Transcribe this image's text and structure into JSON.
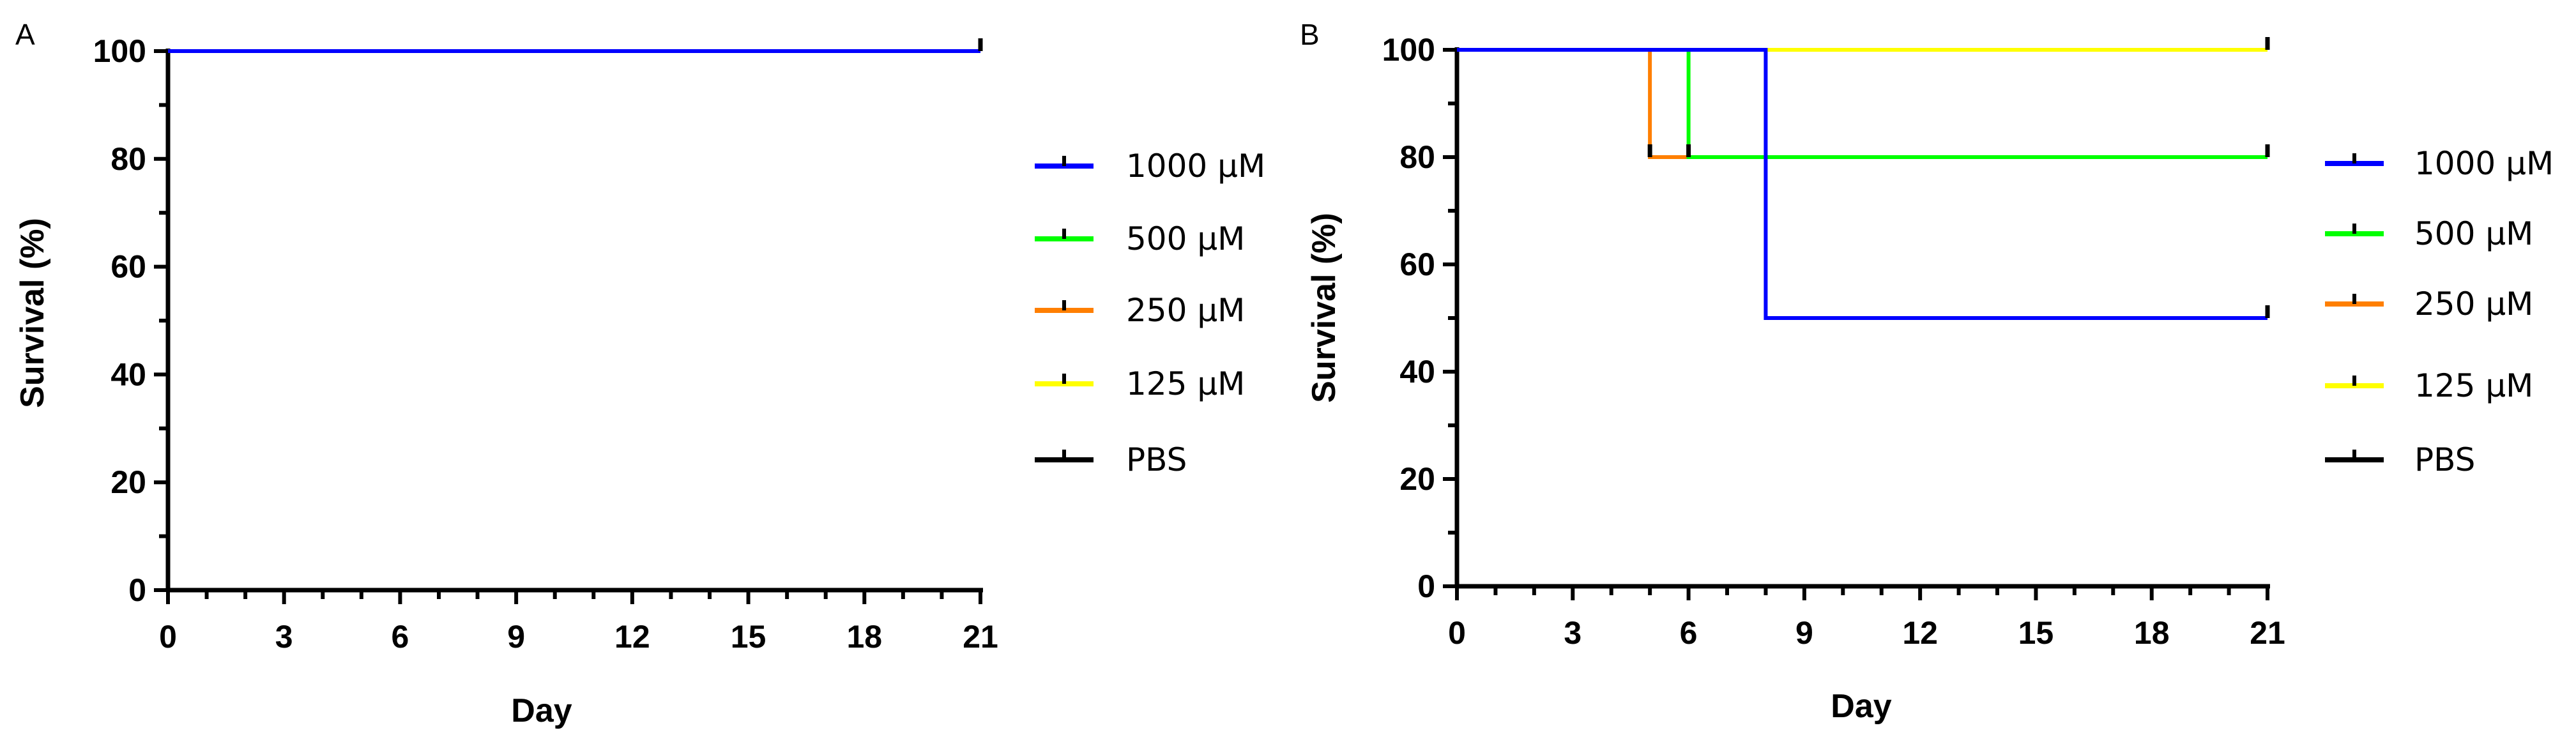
{
  "chart_data": [
    {
      "type": "line",
      "panel_label": "A",
      "title": "",
      "xlabel": "Day",
      "ylabel": "Survival (%)",
      "xlim": [
        0,
        21
      ],
      "ylim": [
        0,
        100
      ],
      "xticks": [
        "0",
        "3",
        "6",
        "9",
        "12",
        "15",
        "18",
        "21"
      ],
      "yticks": [
        "0",
        "20",
        "40",
        "60",
        "80",
        "100"
      ],
      "legend_position": "right",
      "series": [
        {
          "name": "1000 μM",
          "color": "#0000ff",
          "points": [
            [
              0,
              100
            ],
            [
              21,
              100
            ]
          ],
          "censor_x": [
            21
          ]
        },
        {
          "name": "500 μM",
          "color": "#00ff00",
          "points": [
            [
              0,
              100
            ],
            [
              21,
              100
            ]
          ],
          "censor_x": [
            21
          ]
        },
        {
          "name": "250 μM",
          "color": "#ff7f00",
          "points": [
            [
              0,
              100
            ],
            [
              21,
              100
            ]
          ],
          "censor_x": [
            21
          ]
        },
        {
          "name": "125 μM",
          "color": "#ffff00",
          "points": [
            [
              0,
              100
            ],
            [
              21,
              100
            ]
          ],
          "censor_x": [
            21
          ]
        },
        {
          "name": "PBS",
          "color": "#000000",
          "points": [
            [
              0,
              100
            ],
            [
              21,
              100
            ]
          ],
          "censor_x": [
            21
          ]
        }
      ]
    },
    {
      "type": "line",
      "panel_label": "B",
      "title": "",
      "xlabel": "Day",
      "ylabel": "Survival (%)",
      "xlim": [
        0,
        21
      ],
      "ylim": [
        0,
        100
      ],
      "xticks": [
        "0",
        "3",
        "6",
        "9",
        "12",
        "15",
        "18",
        "21"
      ],
      "yticks": [
        "0",
        "20",
        "40",
        "60",
        "80",
        "100"
      ],
      "legend_position": "right",
      "series": [
        {
          "name": "1000 μM",
          "color": "#0000ff",
          "points": [
            [
              0,
              100
            ],
            [
              8,
              100
            ],
            [
              8,
              50
            ],
            [
              21,
              50
            ]
          ],
          "censor_x": [
            21
          ]
        },
        {
          "name": "500 μM",
          "color": "#00ff00",
          "points": [
            [
              0,
              100
            ],
            [
              6,
              100
            ],
            [
              6,
              80
            ],
            [
              21,
              80
            ]
          ],
          "censor_x": [
            21
          ]
        },
        {
          "name": "250 μM",
          "color": "#ff7f00",
          "points": [
            [
              0,
              100
            ],
            [
              5,
              100
            ],
            [
              5,
              80
            ],
            [
              6,
              80
            ]
          ],
          "censor_x": [
            5,
            6
          ]
        },
        {
          "name": "125 μM",
          "color": "#ffff00",
          "points": [
            [
              0,
              100
            ],
            [
              21,
              100
            ]
          ],
          "censor_x": [
            21
          ]
        },
        {
          "name": "PBS",
          "color": "#000000",
          "points": [
            [
              0,
              100
            ],
            [
              21,
              100
            ]
          ],
          "censor_x": [
            21
          ]
        }
      ]
    }
  ]
}
